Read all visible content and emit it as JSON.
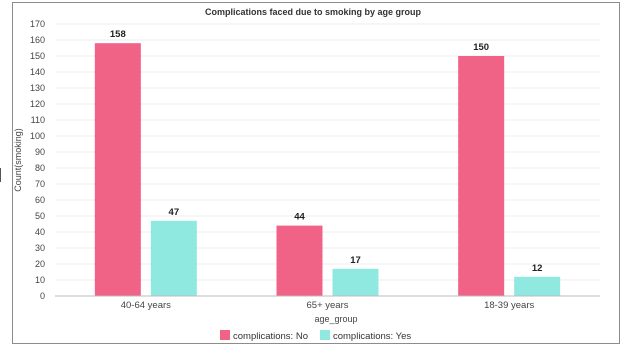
{
  "chart_data": {
    "type": "bar",
    "title": "Complications faced due to smoking by age group",
    "xlabel": "age_group",
    "ylabel": "Count(smoking)",
    "categories": [
      "40-64 years",
      "65+ years",
      "18-39 years"
    ],
    "series": [
      {
        "name": "complications: No",
        "color": "#f06286",
        "values": [
          158,
          44,
          150
        ]
      },
      {
        "name": "complications: Yes",
        "color": "#90e9e1",
        "values": [
          47,
          17,
          12
        ]
      }
    ],
    "ylim": [
      0,
      170
    ],
    "yticks": [
      0,
      10,
      20,
      30,
      40,
      50,
      60,
      70,
      80,
      90,
      100,
      110,
      120,
      130,
      140,
      150,
      160,
      170
    ],
    "grid": true,
    "legend_position": "bottom"
  }
}
